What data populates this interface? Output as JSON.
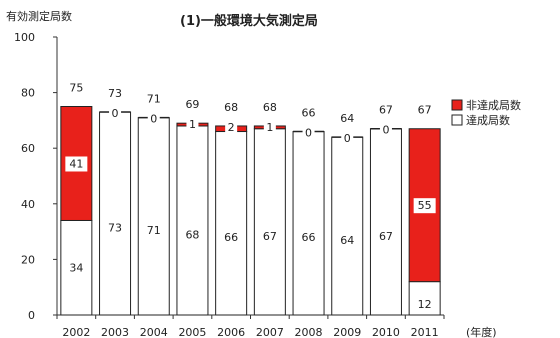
{
  "chart_data": {
    "type": "bar",
    "stacked": true,
    "title": "(1)一般環境大気測定局",
    "ylabel": "有効測定局数",
    "xunit": "(年度)",
    "ylim": [
      0,
      100
    ],
    "yticks": [
      "0",
      "20",
      "40",
      "60",
      "80",
      "100"
    ],
    "categories": [
      "2002",
      "2003",
      "2004",
      "2005",
      "2006",
      "2007",
      "2008",
      "2009",
      "2010",
      "2011"
    ],
    "totals": [
      75,
      73,
      71,
      69,
      68,
      68,
      66,
      64,
      67,
      67
    ],
    "series": [
      {
        "name": "達成局数",
        "values": [
          34,
          73,
          71,
          68,
          66,
          67,
          66,
          64,
          67,
          12
        ],
        "color": "#ffffff"
      },
      {
        "name": "非達成局数",
        "values": [
          41,
          0,
          0,
          1,
          2,
          1,
          0,
          0,
          0,
          55
        ],
        "color": "#e8211b"
      }
    ],
    "legend_position": "right",
    "grid": false
  }
}
